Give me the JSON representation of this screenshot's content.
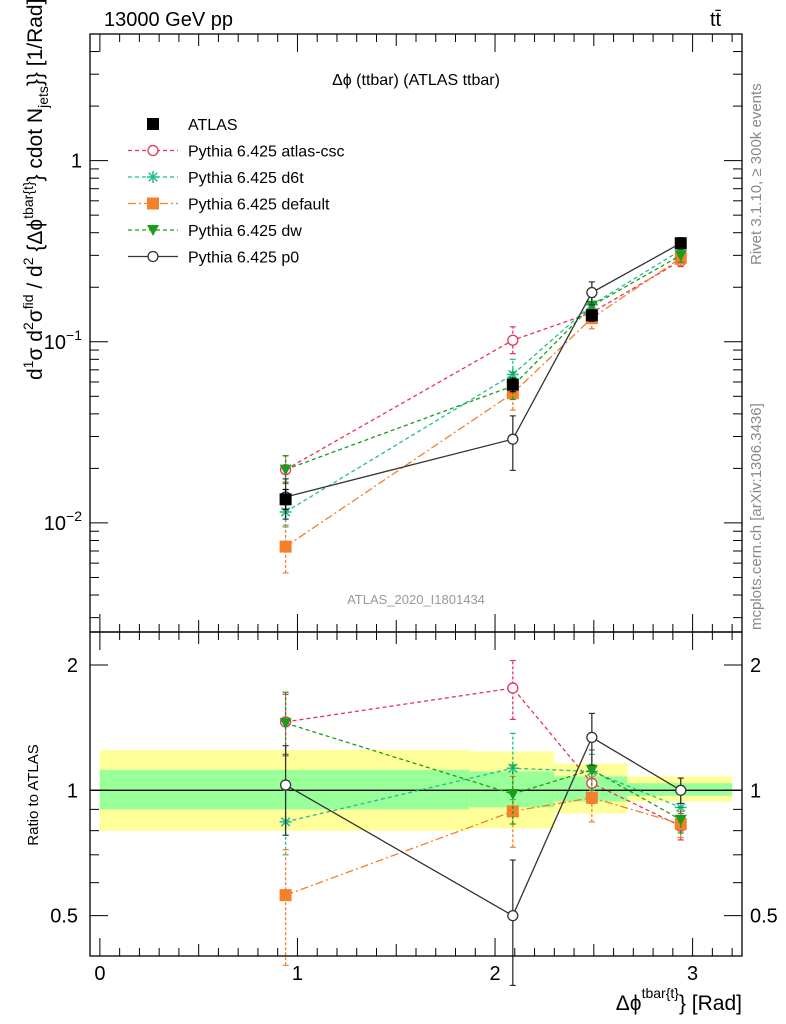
{
  "header": {
    "energy_label": "13000 GeV pp",
    "process_label": "tt̄"
  },
  "side_labels": {
    "rivet": "Rivet 3.1.10, ≥ 300k events",
    "source": "mcplots.cern.ch [arXiv:1306.3436]"
  },
  "analysis_tag": "ATLAS_2020_I1801434",
  "chart_data": [
    {
      "type": "line",
      "title": "Δϕ (ttbar) (ATLAS ttbar)",
      "ylabel": "d¹σ d²σ^fid / d² {Δϕ^tbar{t}} cdot N_jets}} [1/Rad]",
      "xlabel": "",
      "yscale": "log",
      "ylim": [
        0.0025,
        5
      ],
      "xlim": [
        -0.05,
        3.25
      ],
      "yticks": [
        {
          "value": 0.01,
          "base": "10",
          "exp": "−2"
        },
        {
          "value": 0.1,
          "base": "10",
          "exp": "−1"
        },
        {
          "value": 1,
          "base": "1",
          "exp": ""
        }
      ],
      "legend_position": "top-left",
      "series": [
        {
          "name": "ATLAS",
          "color": "#000000",
          "marker": "square-filled",
          "dash": "none",
          "is_data": true,
          "points": [
            {
              "x": 0.94,
              "y": 0.0135,
              "lo": 0.0119,
              "hi": 0.0153
            },
            {
              "x": 2.09,
              "y": 0.058,
              "lo": 0.053,
              "hi": 0.063
            },
            {
              "x": 2.49,
              "y": 0.14,
              "lo": 0.13,
              "hi": 0.15
            },
            {
              "x": 2.94,
              "y": 0.35,
              "lo": 0.33,
              "hi": 0.37
            }
          ]
        },
        {
          "name": "Pythia 6.425 atlas-csc",
          "color": "#e8325a",
          "marker": "circle-open",
          "dash": "4,3",
          "points": [
            {
              "x": 0.94,
              "y": 0.0197,
              "lo": 0.0168,
              "hi": 0.0235
            },
            {
              "x": 2.09,
              "y": 0.102,
              "lo": 0.086,
              "hi": 0.121
            },
            {
              "x": 2.49,
              "y": 0.145,
              "lo": 0.13,
              "hi": 0.162
            },
            {
              "x": 2.94,
              "y": 0.28,
              "lo": 0.26,
              "hi": 0.305
            }
          ]
        },
        {
          "name": "Pythia 6.425 d6t",
          "color": "#1dbf8f",
          "marker": "star",
          "dash": "4,3",
          "points": [
            {
              "x": 0.94,
              "y": 0.0115,
              "lo": 0.0095,
              "hi": 0.014
            },
            {
              "x": 2.09,
              "y": 0.066,
              "lo": 0.055,
              "hi": 0.08
            },
            {
              "x": 2.49,
              "y": 0.16,
              "lo": 0.14,
              "hi": 0.18
            },
            {
              "x": 2.94,
              "y": 0.32,
              "lo": 0.29,
              "hi": 0.35
            }
          ]
        },
        {
          "name": "Pythia 6.425 default",
          "color": "#f57f2a",
          "marker": "square-filled",
          "dash": "8,3,2,3",
          "points": [
            {
              "x": 0.94,
              "y": 0.0074,
              "lo": 0.0053,
              "hi": 0.0097
            },
            {
              "x": 2.09,
              "y": 0.052,
              "lo": 0.042,
              "hi": 0.063
            },
            {
              "x": 2.49,
              "y": 0.135,
              "lo": 0.118,
              "hi": 0.152
            },
            {
              "x": 2.94,
              "y": 0.29,
              "lo": 0.265,
              "hi": 0.315
            }
          ]
        },
        {
          "name": "Pythia 6.425 dw",
          "color": "#1c9c1c",
          "marker": "triangle-down",
          "dash": "4,3",
          "points": [
            {
              "x": 0.94,
              "y": 0.0197,
              "lo": 0.0165,
              "hi": 0.0235
            },
            {
              "x": 2.09,
              "y": 0.057,
              "lo": 0.048,
              "hi": 0.068
            },
            {
              "x": 2.49,
              "y": 0.158,
              "lo": 0.14,
              "hi": 0.176
            },
            {
              "x": 2.94,
              "y": 0.3,
              "lo": 0.275,
              "hi": 0.325
            }
          ]
        },
        {
          "name": "Pythia 6.425 p0",
          "color": "#333333",
          "marker": "circle-open",
          "dash": "none",
          "points": [
            {
              "x": 0.94,
              "y": 0.0139,
              "lo": 0.0105,
              "hi": 0.0175
            },
            {
              "x": 2.09,
              "y": 0.029,
              "lo": 0.0195,
              "hi": 0.039
            },
            {
              "x": 2.49,
              "y": 0.187,
              "lo": 0.16,
              "hi": 0.214
            },
            {
              "x": 2.94,
              "y": 0.35,
              "lo": 0.325,
              "hi": 0.375
            }
          ]
        }
      ]
    },
    {
      "type": "line",
      "title": "",
      "ylabel": "Ratio to ATLAS",
      "xlabel": "Δϕ^tbar{t}} [Rad]",
      "yscale": "log",
      "ylim": [
        0.4,
        2.4
      ],
      "xlim": [
        -0.05,
        3.25
      ],
      "yticks": [
        0.5,
        1,
        2
      ],
      "xticks": [
        0,
        1,
        2,
        3
      ],
      "reference_line": 1,
      "bands": {
        "inner_color": "#99ff99",
        "outer_color": "#ffff99",
        "bins": [
          {
            "xlo": 0.0,
            "xhi": 1.87,
            "inner_lo": 0.9,
            "inner_hi": 1.12,
            "outer_lo": 0.8,
            "outer_hi": 1.25
          },
          {
            "xlo": 1.87,
            "xhi": 2.3,
            "inner_lo": 0.91,
            "inner_hi": 1.11,
            "outer_lo": 0.81,
            "outer_hi": 1.24
          },
          {
            "xlo": 2.3,
            "xhi": 2.67,
            "inner_lo": 0.94,
            "inner_hi": 1.08,
            "outer_lo": 0.88,
            "outer_hi": 1.16
          },
          {
            "xlo": 2.67,
            "xhi": 3.2,
            "inner_lo": 0.97,
            "inner_hi": 1.04,
            "outer_lo": 0.94,
            "outer_hi": 1.08
          }
        ]
      },
      "series": [
        {
          "name": "Pythia 6.425 atlas-csc",
          "color": "#e8325a",
          "marker": "circle-open",
          "dash": "4,3",
          "points": [
            {
              "x": 0.94,
              "y": 1.46,
              "lo": 1.21,
              "hi": 1.7
            },
            {
              "x": 2.09,
              "y": 1.76,
              "lo": 1.48,
              "hi": 2.05
            },
            {
              "x": 2.49,
              "y": 1.04,
              "lo": 0.93,
              "hi": 1.15
            },
            {
              "x": 2.94,
              "y": 0.82,
              "lo": 0.76,
              "hi": 0.88
            }
          ]
        },
        {
          "name": "Pythia 6.425 d6t",
          "color": "#1dbf8f",
          "marker": "star",
          "dash": "4,3",
          "points": [
            {
              "x": 0.94,
              "y": 0.84,
              "lo": 0.7,
              "hi": 1.0
            },
            {
              "x": 2.09,
              "y": 1.13,
              "lo": 0.95,
              "hi": 1.37
            },
            {
              "x": 2.49,
              "y": 1.11,
              "lo": 1.0,
              "hi": 1.22
            },
            {
              "x": 2.94,
              "y": 0.91,
              "lo": 0.84,
              "hi": 0.99
            }
          ]
        },
        {
          "name": "Pythia 6.425 default",
          "color": "#f57f2a",
          "marker": "square-filled",
          "dash": "8,3,2,3",
          "points": [
            {
              "x": 0.94,
              "y": 0.56,
              "lo": 0.38,
              "hi": 0.72
            },
            {
              "x": 2.09,
              "y": 0.89,
              "lo": 0.73,
              "hi": 1.08
            },
            {
              "x": 2.49,
              "y": 0.96,
              "lo": 0.84,
              "hi": 1.08
            },
            {
              "x": 2.94,
              "y": 0.83,
              "lo": 0.77,
              "hi": 0.89
            }
          ]
        },
        {
          "name": "Pythia 6.425 dw",
          "color": "#1c9c1c",
          "marker": "triangle-down",
          "dash": "4,3",
          "points": [
            {
              "x": 0.94,
              "y": 1.45,
              "lo": 1.22,
              "hi": 1.72
            },
            {
              "x": 2.09,
              "y": 0.98,
              "lo": 0.83,
              "hi": 1.15
            },
            {
              "x": 2.49,
              "y": 1.12,
              "lo": 1.0,
              "hi": 1.25
            },
            {
              "x": 2.94,
              "y": 0.85,
              "lo": 0.79,
              "hi": 0.91
            }
          ]
        },
        {
          "name": "Pythia 6.425 p0",
          "color": "#333333",
          "marker": "circle-open",
          "dash": "none",
          "points": [
            {
              "x": 0.94,
              "y": 1.03,
              "lo": 0.78,
              "hi": 1.28
            },
            {
              "x": 2.09,
              "y": 0.5,
              "lo": 0.34,
              "hi": 0.68
            },
            {
              "x": 2.49,
              "y": 1.34,
              "lo": 1.15,
              "hi": 1.53
            },
            {
              "x": 2.94,
              "y": 1.0,
              "lo": 0.93,
              "hi": 1.07
            }
          ]
        }
      ]
    }
  ]
}
